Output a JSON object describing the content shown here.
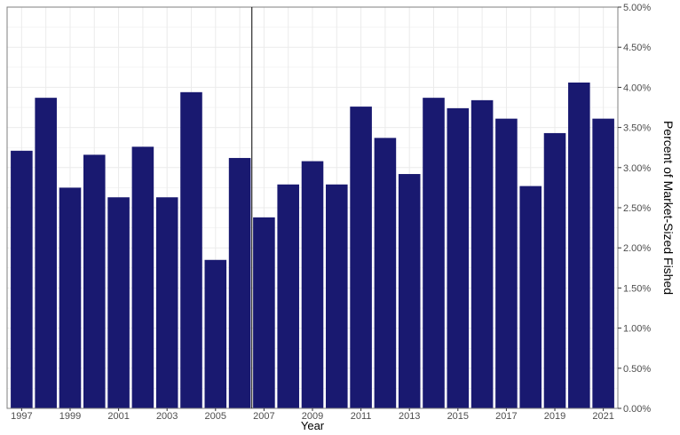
{
  "chart_data": {
    "type": "bar",
    "xlabel": "Year",
    "ylabel": "Percent of Market-Sized Fished",
    "categories": [
      "1997",
      "1998",
      "1999",
      "2000",
      "2001",
      "2002",
      "2003",
      "2004",
      "2005",
      "2006",
      "2007",
      "2008",
      "2009",
      "2010",
      "2011",
      "2012",
      "2013",
      "2014",
      "2015",
      "2016",
      "2017",
      "2018",
      "2019",
      "2020",
      "2021"
    ],
    "x_tick_labels": [
      "1997",
      "1999",
      "2001",
      "2003",
      "2005",
      "2007",
      "2009",
      "2011",
      "2013",
      "2015",
      "2017",
      "2019",
      "2021"
    ],
    "values": [
      3.21,
      3.87,
      2.75,
      3.16,
      2.63,
      3.26,
      2.63,
      3.94,
      1.85,
      3.12,
      2.38,
      2.79,
      3.08,
      2.79,
      3.76,
      3.37,
      2.92,
      3.87,
      3.74,
      3.84,
      3.61,
      2.77,
      3.43,
      4.06,
      3.61
    ],
    "y_unit": "%",
    "ylim": [
      0,
      5
    ],
    "y_ticks": [
      "0.00%",
      "0.50%",
      "1.00%",
      "1.50%",
      "2.00%",
      "2.50%",
      "3.00%",
      "3.50%",
      "4.00%",
      "4.50%",
      "5.00%"
    ],
    "y_axis_position": "right",
    "grid": true,
    "reference_line_between": [
      "2006",
      "2007"
    ],
    "bar_color": "#191970"
  }
}
